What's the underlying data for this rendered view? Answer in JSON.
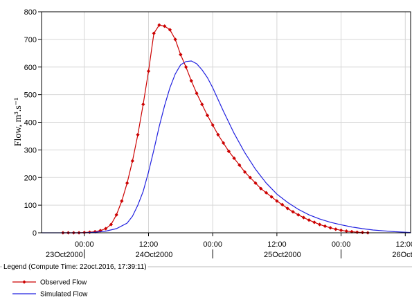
{
  "chart_data": {
    "type": "line",
    "ylabel": "Flow, m³.s⁻¹",
    "ylim": [
      0,
      800
    ],
    "yticks": [
      0,
      100,
      200,
      300,
      400,
      500,
      600,
      700,
      800
    ],
    "x_unit": "hours since 23Oct2000 00:00",
    "xlim": [
      -8,
      61
    ],
    "time_ticks": [
      {
        "label": "00:00",
        "x": 0
      },
      {
        "label": "12:00",
        "x": 12
      },
      {
        "label": "00:00",
        "x": 24
      },
      {
        "label": "12:00",
        "x": 36
      },
      {
        "label": "00:00",
        "x": 48
      },
      {
        "label": "12:00",
        "x": 60
      }
    ],
    "date_labels": [
      "23Oct2000",
      "24Oct2000",
      "25Oct2000",
      "26Oct2000"
    ],
    "grid": true,
    "legend_title": "Legend (Compute Time: 22oct.2016, 17:39:11)",
    "series": [
      {
        "name": "Observed Flow",
        "color": "#cc0000",
        "marker": "diamond",
        "x": [
          -4,
          -3,
          -2,
          -1,
          0,
          1,
          2,
          3,
          4,
          5,
          6,
          7,
          8,
          9,
          10,
          11,
          12,
          13,
          14,
          15,
          16,
          17,
          18,
          19,
          20,
          21,
          22,
          23,
          24,
          25,
          26,
          27,
          28,
          29,
          30,
          31,
          32,
          33,
          34,
          35,
          36,
          37,
          38,
          39,
          40,
          41,
          42,
          43,
          44,
          45,
          46,
          47,
          48,
          49,
          50,
          51,
          52,
          53
        ],
        "y": [
          0,
          0,
          0,
          0,
          1,
          2,
          4,
          8,
          15,
          30,
          65,
          115,
          180,
          260,
          355,
          465,
          585,
          722,
          752,
          748,
          735,
          700,
          645,
          600,
          550,
          505,
          465,
          425,
          390,
          355,
          325,
          295,
          270,
          245,
          220,
          200,
          180,
          160,
          145,
          130,
          115,
          102,
          88,
          76,
          65,
          55,
          46,
          38,
          30,
          24,
          18,
          13,
          9,
          6,
          4,
          2,
          1,
          0
        ]
      },
      {
        "name": "Simulated Flow",
        "color": "#2020e0",
        "x": [
          -8,
          -4,
          0,
          2,
          4,
          6,
          8,
          9,
          10,
          11,
          12,
          13,
          14,
          15,
          16,
          17,
          18,
          19,
          20,
          21,
          22,
          23,
          24,
          26,
          28,
          30,
          32,
          34,
          36,
          38,
          40,
          42,
          44,
          46,
          48,
          50,
          52,
          54,
          56,
          58,
          60,
          61
        ],
        "y": [
          0,
          0,
          0,
          2,
          6,
          15,
          35,
          60,
          100,
          150,
          220,
          300,
          385,
          460,
          525,
          575,
          608,
          620,
          622,
          612,
          590,
          562,
          525,
          440,
          360,
          290,
          230,
          180,
          140,
          110,
          85,
          65,
          50,
          38,
          29,
          21,
          15,
          10,
          7,
          4,
          2,
          1
        ]
      }
    ]
  }
}
